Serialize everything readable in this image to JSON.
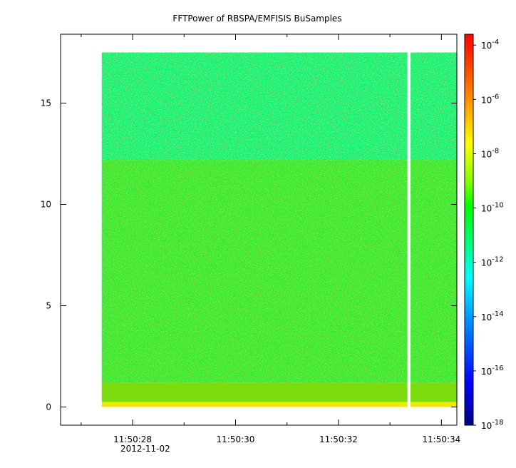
{
  "chart_data": {
    "type": "heatmap",
    "title": "FFTPower of RBSPA/EMFISIS  BuSamples",
    "xlabel": "",
    "ylabel": "",
    "x_ticks": [
      {
        "t": 28,
        "label": "11:50:28"
      },
      {
        "t": 30,
        "label": "11:50:30"
      },
      {
        "t": 32,
        "label": "11:50:32"
      },
      {
        "t": 34,
        "label": "11:50:34"
      }
    ],
    "x_minor_ticks": [
      27,
      29,
      31,
      33
    ],
    "x_date_label": "2012-11-02",
    "xlim": [
      "11:50:26.6",
      "11:50:34.3"
    ],
    "y_ticks": [
      0,
      5,
      10,
      15
    ],
    "ylim": [
      -0.9,
      18.4
    ],
    "data_extent": {
      "t_start": 27.4,
      "t_end": 34.3,
      "y_min": 0,
      "y_max": 17.5
    },
    "gap": {
      "t_start": 33.34,
      "t_end": 33.4
    },
    "bands": [
      {
        "y_from": 0,
        "y_to": 0.25,
        "log10_power": -8.5,
        "color": "#f0ea00"
      },
      {
        "y_from": 0.25,
        "y_to": 1.2,
        "log10_power": -9.8,
        "color": "#7cdc10"
      },
      {
        "y_from": 1.2,
        "y_to": 12.2,
        "log10_power": -10.2,
        "color": "#3be836"
      },
      {
        "y_from": 12.2,
        "y_to": 17.5,
        "log10_power": -11.5,
        "color": "#18f078"
      }
    ],
    "colorbar": {
      "scale": "log",
      "range": [
        -18,
        -3.6
      ],
      "ticks": [
        {
          "value": -4,
          "base": "10",
          "exp": "-4"
        },
        {
          "value": -6,
          "base": "10",
          "exp": "-6"
        },
        {
          "value": -8,
          "base": "10",
          "exp": "-8"
        },
        {
          "value": -10,
          "base": "10",
          "exp": "-10"
        },
        {
          "value": -12,
          "base": "10",
          "exp": "-12"
        },
        {
          "value": -14,
          "base": "10",
          "exp": "-14"
        },
        {
          "value": -16,
          "base": "10",
          "exp": "-16"
        },
        {
          "value": -18,
          "base": "10",
          "exp": "-18"
        }
      ],
      "colormap": [
        "#00007f",
        "#0000ff",
        "#007fff",
        "#00ffff",
        "#00ff80",
        "#00ff00",
        "#80ff00",
        "#ffff00",
        "#ff8000",
        "#ff0000"
      ]
    }
  }
}
